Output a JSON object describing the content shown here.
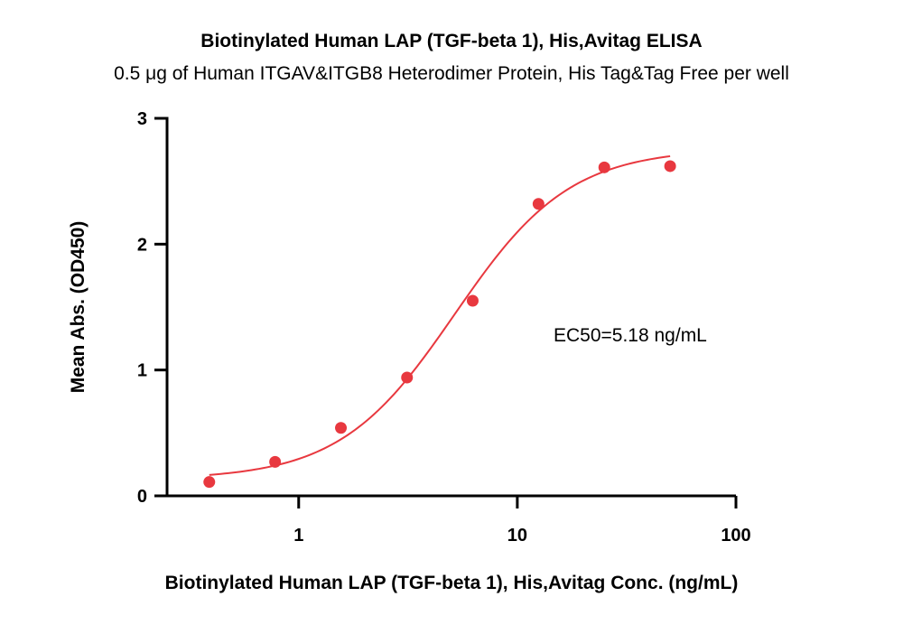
{
  "chart_data": {
    "type": "scatter",
    "title": "Biotinylated Human LAP (TGF-beta 1), His,Avitag ELISA",
    "subtitle": "0.5 μg of Human ITGAV&ITGB8 Heterodimer Protein, His Tag&Tag Free per well",
    "xlabel": "Biotinylated Human LAP (TGF-beta 1), His,Avitag Conc. (ng/mL)",
    "ylabel": "Mean Abs. (OD450)",
    "x_scale": "log",
    "xlim": [
      0.25,
      100
    ],
    "ylim": [
      0,
      3
    ],
    "x_ticks": [
      1,
      10,
      100
    ],
    "x_tick_labels": [
      "1",
      "10",
      "100"
    ],
    "y_ticks": [
      0,
      1,
      2,
      3
    ],
    "y_tick_labels": [
      "0",
      "1",
      "2",
      "3"
    ],
    "grid": false,
    "colors": {
      "points": "#e8383f",
      "curve": "#e8383f",
      "axis": "#000000"
    },
    "series": [
      {
        "points": [
          {
            "x": 0.39,
            "y": 0.11
          },
          {
            "x": 0.78,
            "y": 0.27
          },
          {
            "x": 1.56,
            "y": 0.54
          },
          {
            "x": 3.13,
            "y": 0.94
          },
          {
            "x": 6.25,
            "y": 1.55
          },
          {
            "x": 12.5,
            "y": 2.32
          },
          {
            "x": 25,
            "y": 2.61
          },
          {
            "x": 50,
            "y": 2.62
          }
        ]
      }
    ],
    "fit": {
      "model": "4PL",
      "bottom": 0.13,
      "top": 2.76,
      "ec50": 5.18,
      "hill": 1.65,
      "x_range": [
        0.39,
        50
      ]
    },
    "annotations": [
      {
        "text": "EC50=5.18 ng/mL"
      }
    ]
  }
}
